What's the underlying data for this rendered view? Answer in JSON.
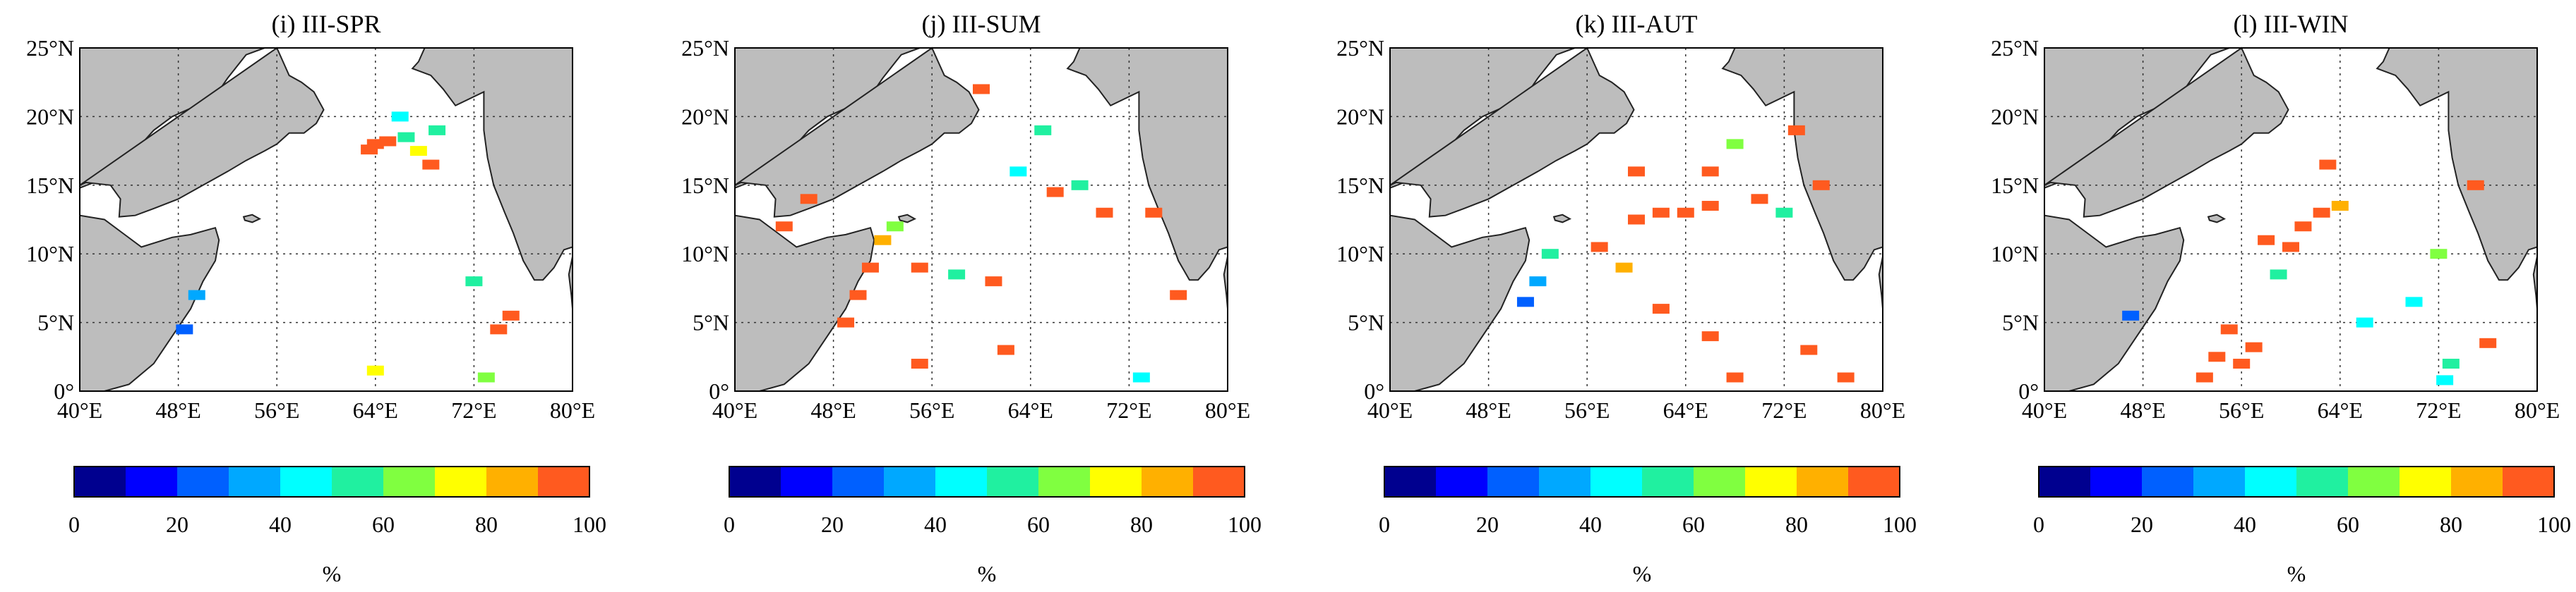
{
  "figure": {
    "colorbar_unit": "%",
    "land_color": "#bdbdbd",
    "hotspot_color": "#ff5a1f",
    "colormap": [
      "#00008f",
      "#0000ff",
      "#0060ff",
      "#00a8ff",
      "#00ffff",
      "#20f0a0",
      "#80ff40",
      "#ffff00",
      "#ffb000",
      "#ff5a1f"
    ],
    "colorbar_ticks": [
      "0",
      "20",
      "40",
      "60",
      "80",
      "100"
    ],
    "x_ticks": [
      "40°E",
      "48°E",
      "56°E",
      "64°E",
      "72°E",
      "80°E"
    ],
    "y_ticks": [
      "0°",
      "5°N",
      "10°N",
      "15°N",
      "20°N",
      "25°N"
    ]
  },
  "chart_data": [
    {
      "type": "heatmap",
      "title": "(i) III-SPR",
      "xlim": [
        40,
        80
      ],
      "ylim": [
        0,
        25
      ],
      "clim": [
        0,
        100
      ],
      "zlabel": "%",
      "points": [
        [
          64,
          18,
          100
        ],
        [
          65,
          18.2,
          100
        ],
        [
          66.5,
          18.5,
          50
        ],
        [
          67.5,
          17.5,
          70
        ],
        [
          68.5,
          16.5,
          100
        ],
        [
          66,
          20,
          45
        ],
        [
          69,
          19,
          50
        ],
        [
          63.5,
          17.6,
          90
        ],
        [
          72,
          8,
          50
        ],
        [
          75,
          5.5,
          100
        ],
        [
          74,
          4.5,
          100
        ],
        [
          73,
          1,
          60
        ],
        [
          64,
          1.5,
          70
        ],
        [
          49.5,
          7,
          30
        ],
        [
          48.5,
          4.5,
          20
        ]
      ]
    },
    {
      "type": "heatmap",
      "title": "(j) III-SUM",
      "xlim": [
        40,
        80
      ],
      "ylim": [
        0,
        25
      ],
      "clim": [
        0,
        100
      ],
      "zlabel": "%",
      "points": [
        [
          52,
          11,
          80
        ],
        [
          51,
          9,
          100
        ],
        [
          50,
          7,
          100
        ],
        [
          49,
          5,
          100
        ],
        [
          53,
          12,
          60
        ],
        [
          55,
          9,
          100
        ],
        [
          58,
          8.5,
          50
        ],
        [
          61,
          8,
          100
        ],
        [
          68,
          15,
          50
        ],
        [
          70,
          13,
          100
        ],
        [
          66,
          14.5,
          100
        ],
        [
          63,
          16,
          40
        ],
        [
          65,
          19,
          50
        ],
        [
          60,
          22,
          100
        ],
        [
          44,
          12,
          100
        ],
        [
          46,
          14,
          100
        ],
        [
          62,
          3,
          100
        ],
        [
          55,
          2,
          100
        ],
        [
          73,
          1,
          40
        ],
        [
          76,
          7,
          100
        ],
        [
          74,
          13,
          100
        ]
      ]
    },
    {
      "type": "heatmap",
      "title": "(k) III-AUT",
      "xlim": [
        40,
        80
      ],
      "ylim": [
        0,
        25
      ],
      "clim": [
        0,
        100
      ],
      "zlabel": "%",
      "points": [
        [
          62,
          13,
          100
        ],
        [
          64,
          13,
          100
        ],
        [
          66,
          13.5,
          100
        ],
        [
          60,
          12.5,
          100
        ],
        [
          70,
          14,
          100
        ],
        [
          72,
          13,
          50
        ],
        [
          75,
          15,
          100
        ],
        [
          73,
          19,
          100
        ],
        [
          66,
          16,
          90
        ],
        [
          60,
          16,
          100
        ],
        [
          57,
          10.5,
          100
        ],
        [
          59,
          9,
          80
        ],
        [
          52,
          8,
          30
        ],
        [
          51,
          6.5,
          20
        ],
        [
          53,
          10,
          50
        ],
        [
          62,
          6,
          100
        ],
        [
          66,
          4,
          100
        ],
        [
          68,
          1,
          100
        ],
        [
          74,
          3,
          100
        ],
        [
          77,
          1,
          100
        ],
        [
          68,
          18,
          60
        ]
      ]
    },
    {
      "type": "heatmap",
      "title": "(l) III-WIN",
      "xlim": [
        40,
        80
      ],
      "ylim": [
        0,
        25
      ],
      "clim": [
        0,
        100
      ],
      "zlabel": "%",
      "points": [
        [
          54,
          2.5,
          100
        ],
        [
          55,
          4.5,
          100
        ],
        [
          56,
          2,
          100
        ],
        [
          53,
          1,
          100
        ],
        [
          57,
          3.2,
          100
        ],
        [
          61,
          12,
          100
        ],
        [
          62.5,
          13,
          100
        ],
        [
          60,
          10.5,
          100
        ],
        [
          59,
          8.5,
          50
        ],
        [
          58,
          11,
          100
        ],
        [
          64,
          13.5,
          80
        ],
        [
          72,
          10,
          60
        ],
        [
          70,
          6.5,
          40
        ],
        [
          73,
          2,
          50
        ],
        [
          72.5,
          0.8,
          40
        ],
        [
          76,
          3.5,
          100
        ],
        [
          75,
          15,
          100
        ],
        [
          66,
          5,
          40
        ],
        [
          63,
          16.5,
          100
        ],
        [
          47,
          5.5,
          20
        ]
      ]
    }
  ]
}
